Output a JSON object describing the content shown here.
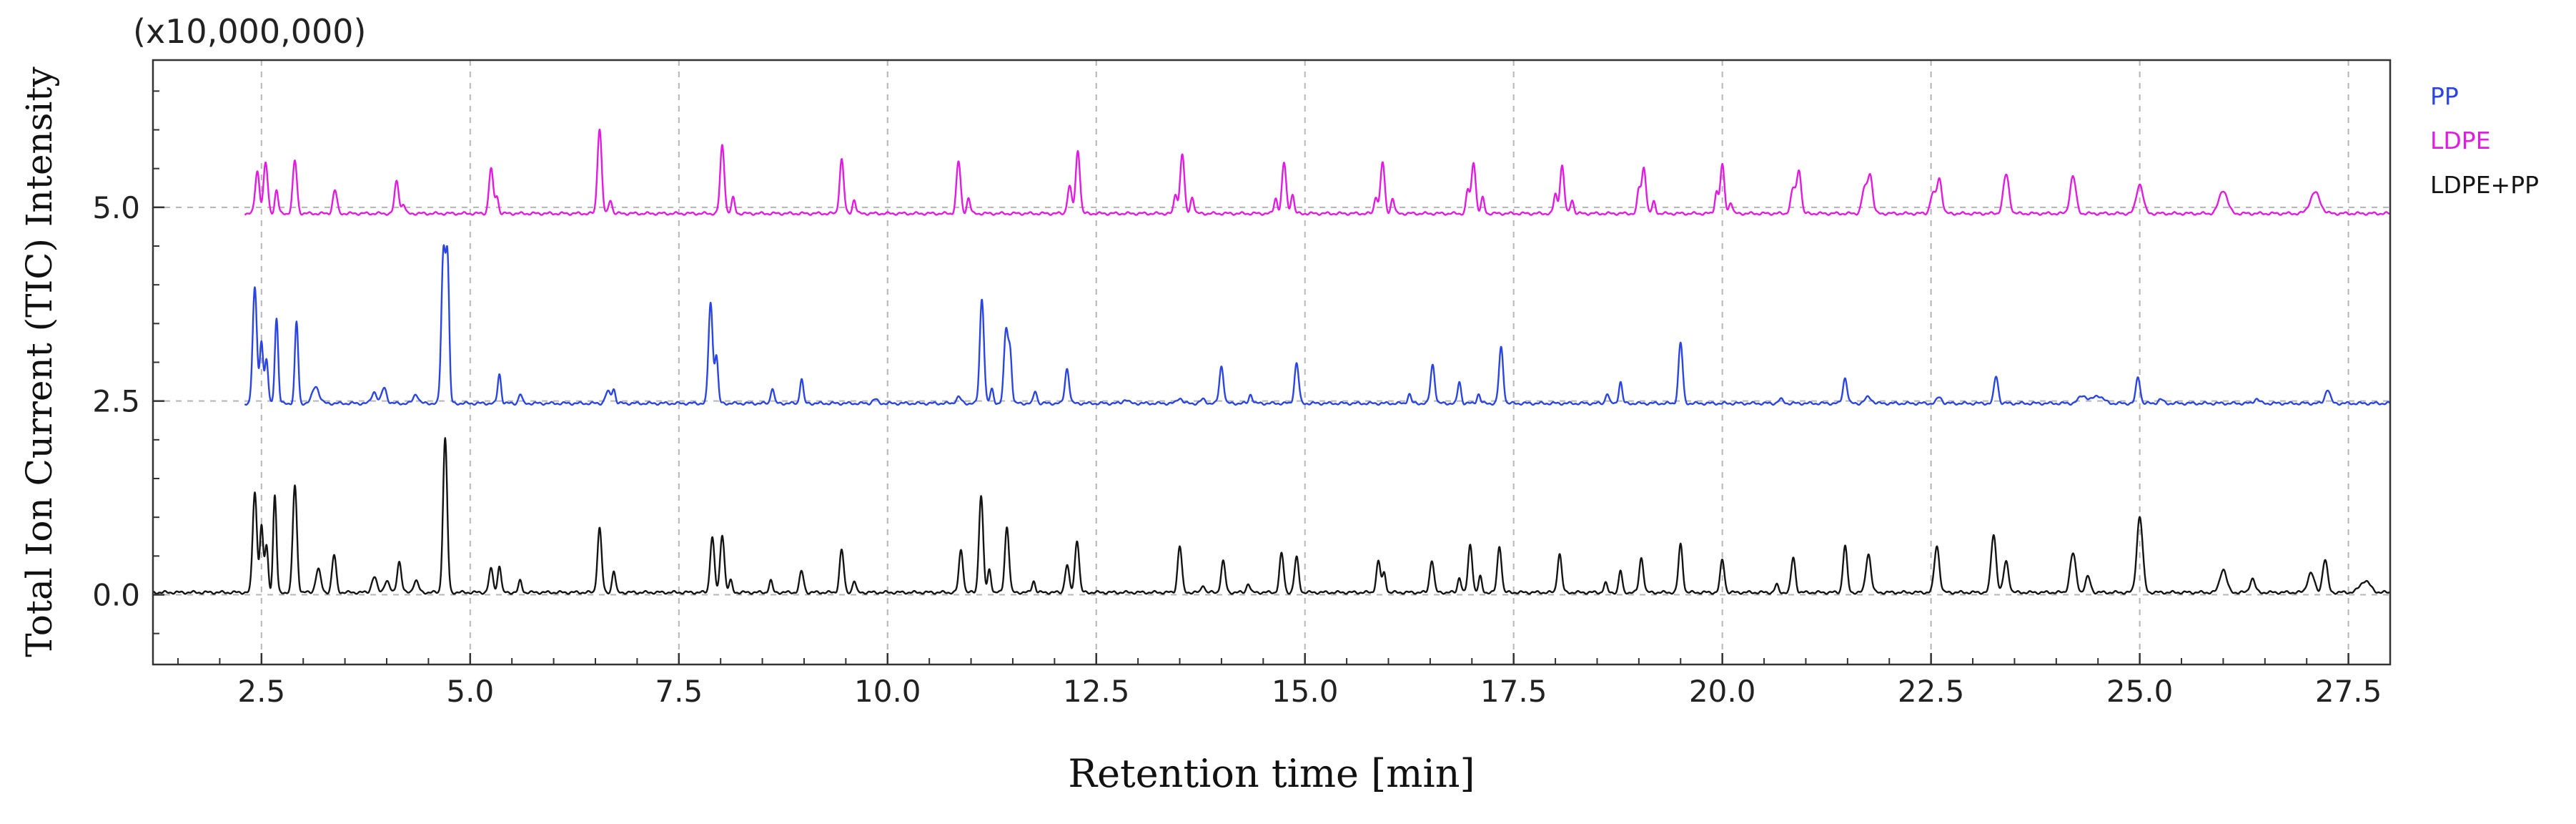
{
  "chart_data": {
    "type": "line",
    "title": "",
    "multiplier_label": "(x10,000,000)",
    "xlabel": "Retention time [min]",
    "ylabel": "Total Ion Current (TIC) Intensity",
    "xlim": [
      1.2,
      28.0
    ],
    "ylim": [
      -0.9,
      6.9
    ],
    "x_ticks": [
      2.5,
      5.0,
      7.5,
      10.0,
      12.5,
      15.0,
      17.5,
      20.0,
      22.5,
      25.0,
      27.5
    ],
    "x_tick_labels": [
      "2.5",
      "5.0",
      "7.5",
      "10.0",
      "12.5",
      "15.0",
      "17.5",
      "20.0",
      "22.5",
      "25.0",
      "27.5"
    ],
    "y_ticks": [
      0.0,
      2.5,
      5.0
    ],
    "y_tick_labels": [
      "0.0",
      "2.5",
      "5.0"
    ],
    "grid": "dashed",
    "legend_position": "right",
    "series": [
      {
        "name": "PP",
        "color": "#2a45e0",
        "baseline": 2.47,
        "peaks": [
          [
            2.42,
            1.48,
            0.025
          ],
          [
            2.5,
            0.8,
            0.02
          ],
          [
            2.56,
            0.55,
            0.02
          ],
          [
            2.68,
            1.1,
            0.02
          ],
          [
            2.92,
            1.05,
            0.02
          ],
          [
            3.15,
            0.22,
            0.04
          ],
          [
            3.85,
            0.15,
            0.03
          ],
          [
            3.97,
            0.2,
            0.03
          ],
          [
            4.35,
            0.12,
            0.03
          ],
          [
            4.68,
            1.95,
            0.025
          ],
          [
            4.73,
            1.7,
            0.02
          ],
          [
            5.35,
            0.38,
            0.02
          ],
          [
            5.6,
            0.12,
            0.02
          ],
          [
            6.65,
            0.15,
            0.03
          ],
          [
            6.72,
            0.18,
            0.02
          ],
          [
            7.88,
            1.3,
            0.025
          ],
          [
            7.95,
            0.6,
            0.02
          ],
          [
            8.62,
            0.2,
            0.02
          ],
          [
            8.97,
            0.32,
            0.02
          ],
          [
            9.85,
            0.05,
            0.03
          ],
          [
            10.85,
            0.08,
            0.03
          ],
          [
            11.13,
            1.35,
            0.025
          ],
          [
            11.25,
            0.18,
            0.02
          ],
          [
            11.42,
            0.95,
            0.025
          ],
          [
            11.47,
            0.6,
            0.02
          ],
          [
            11.77,
            0.16,
            0.02
          ],
          [
            12.15,
            0.45,
            0.025
          ],
          [
            12.85,
            0.05,
            0.03
          ],
          [
            13.5,
            0.07,
            0.03
          ],
          [
            13.78,
            0.05,
            0.03
          ],
          [
            14.0,
            0.48,
            0.025
          ],
          [
            14.35,
            0.12,
            0.02
          ],
          [
            14.9,
            0.52,
            0.025
          ],
          [
            16.25,
            0.12,
            0.02
          ],
          [
            16.53,
            0.5,
            0.025
          ],
          [
            16.85,
            0.28,
            0.02
          ],
          [
            17.08,
            0.12,
            0.02
          ],
          [
            17.35,
            0.72,
            0.025
          ],
          [
            18.62,
            0.13,
            0.02
          ],
          [
            18.78,
            0.28,
            0.02
          ],
          [
            19.5,
            0.78,
            0.025
          ],
          [
            20.7,
            0.05,
            0.03
          ],
          [
            21.47,
            0.33,
            0.025
          ],
          [
            21.75,
            0.08,
            0.04
          ],
          [
            22.6,
            0.08,
            0.03
          ],
          [
            23.28,
            0.35,
            0.025
          ],
          [
            24.32,
            0.1,
            0.05
          ],
          [
            24.5,
            0.1,
            0.06
          ],
          [
            24.98,
            0.34,
            0.025
          ],
          [
            25.25,
            0.05,
            0.03
          ],
          [
            26.4,
            0.06,
            0.03
          ],
          [
            27.25,
            0.18,
            0.03
          ]
        ]
      },
      {
        "name": "LDPE",
        "color": "#e11be0",
        "baseline": 4.92,
        "peaks": [
          [
            2.45,
            0.55,
            0.025
          ],
          [
            2.55,
            0.65,
            0.025
          ],
          [
            2.68,
            0.3,
            0.02
          ],
          [
            2.9,
            0.68,
            0.025
          ],
          [
            3.38,
            0.3,
            0.025
          ],
          [
            4.12,
            0.42,
            0.025
          ],
          [
            4.2,
            0.12,
            0.02
          ],
          [
            5.25,
            0.58,
            0.025
          ],
          [
            5.32,
            0.22,
            0.02
          ],
          [
            6.55,
            1.1,
            0.025
          ],
          [
            6.68,
            0.18,
            0.02
          ],
          [
            8.02,
            0.88,
            0.025
          ],
          [
            8.15,
            0.2,
            0.02
          ],
          [
            9.45,
            0.7,
            0.025
          ],
          [
            9.6,
            0.18,
            0.02
          ],
          [
            10.85,
            0.67,
            0.025
          ],
          [
            10.97,
            0.2,
            0.02
          ],
          [
            12.18,
            0.35,
            0.025
          ],
          [
            12.28,
            0.82,
            0.025
          ],
          [
            13.45,
            0.25,
            0.02
          ],
          [
            13.53,
            0.77,
            0.025
          ],
          [
            13.65,
            0.22,
            0.02
          ],
          [
            14.65,
            0.2,
            0.02
          ],
          [
            14.75,
            0.65,
            0.025
          ],
          [
            14.85,
            0.25,
            0.02
          ],
          [
            15.85,
            0.22,
            0.02
          ],
          [
            15.93,
            0.66,
            0.025
          ],
          [
            16.05,
            0.2,
            0.02
          ],
          [
            16.95,
            0.3,
            0.02
          ],
          [
            17.02,
            0.67,
            0.025
          ],
          [
            17.13,
            0.2,
            0.02
          ],
          [
            18.0,
            0.25,
            0.02
          ],
          [
            18.08,
            0.62,
            0.025
          ],
          [
            18.2,
            0.18,
            0.02
          ],
          [
            19.0,
            0.3,
            0.02
          ],
          [
            19.06,
            0.6,
            0.025
          ],
          [
            19.18,
            0.15,
            0.02
          ],
          [
            19.93,
            0.28,
            0.02
          ],
          [
            20.0,
            0.62,
            0.025
          ],
          [
            20.1,
            0.15,
            0.02
          ],
          [
            20.85,
            0.32,
            0.03
          ],
          [
            20.92,
            0.55,
            0.025
          ],
          [
            21.7,
            0.3,
            0.03
          ],
          [
            21.77,
            0.5,
            0.03
          ],
          [
            22.52,
            0.25,
            0.03
          ],
          [
            22.6,
            0.45,
            0.03
          ],
          [
            23.4,
            0.5,
            0.035
          ],
          [
            24.2,
            0.48,
            0.035
          ],
          [
            25.0,
            0.38,
            0.04
          ],
          [
            26.0,
            0.3,
            0.05
          ],
          [
            27.1,
            0.27,
            0.06
          ]
        ]
      },
      {
        "name": "LDPE+PP",
        "color": "#141414",
        "baseline": 0.03,
        "peaks": [
          [
            2.42,
            1.3,
            0.025
          ],
          [
            2.5,
            0.85,
            0.02
          ],
          [
            2.56,
            0.6,
            0.02
          ],
          [
            2.66,
            1.25,
            0.02
          ],
          [
            2.9,
            1.38,
            0.025
          ],
          [
            3.18,
            0.3,
            0.03
          ],
          [
            3.37,
            0.48,
            0.025
          ],
          [
            3.85,
            0.2,
            0.03
          ],
          [
            4.0,
            0.15,
            0.03
          ],
          [
            4.15,
            0.4,
            0.025
          ],
          [
            4.35,
            0.15,
            0.03
          ],
          [
            4.7,
            1.98,
            0.025
          ],
          [
            5.25,
            0.3,
            0.025
          ],
          [
            5.35,
            0.35,
            0.02
          ],
          [
            5.6,
            0.15,
            0.02
          ],
          [
            6.55,
            0.83,
            0.025
          ],
          [
            6.72,
            0.28,
            0.02
          ],
          [
            7.9,
            0.72,
            0.025
          ],
          [
            8.02,
            0.75,
            0.025
          ],
          [
            8.12,
            0.15,
            0.02
          ],
          [
            8.6,
            0.15,
            0.02
          ],
          [
            8.97,
            0.27,
            0.025
          ],
          [
            9.45,
            0.55,
            0.025
          ],
          [
            9.6,
            0.15,
            0.02
          ],
          [
            10.88,
            0.55,
            0.025
          ],
          [
            11.12,
            1.25,
            0.025
          ],
          [
            11.22,
            0.3,
            0.02
          ],
          [
            11.43,
            0.85,
            0.025
          ],
          [
            11.75,
            0.15,
            0.02
          ],
          [
            12.15,
            0.35,
            0.025
          ],
          [
            12.27,
            0.68,
            0.025
          ],
          [
            13.5,
            0.6,
            0.025
          ],
          [
            13.78,
            0.1,
            0.02
          ],
          [
            14.02,
            0.4,
            0.025
          ],
          [
            14.32,
            0.12,
            0.02
          ],
          [
            14.72,
            0.5,
            0.025
          ],
          [
            14.9,
            0.45,
            0.025
          ],
          [
            15.88,
            0.4,
            0.025
          ],
          [
            15.95,
            0.25,
            0.02
          ],
          [
            16.52,
            0.42,
            0.025
          ],
          [
            16.85,
            0.2,
            0.02
          ],
          [
            16.98,
            0.62,
            0.025
          ],
          [
            17.1,
            0.2,
            0.02
          ],
          [
            17.33,
            0.6,
            0.025
          ],
          [
            18.05,
            0.5,
            0.025
          ],
          [
            18.6,
            0.12,
            0.02
          ],
          [
            18.78,
            0.28,
            0.02
          ],
          [
            19.03,
            0.45,
            0.025
          ],
          [
            19.5,
            0.62,
            0.025
          ],
          [
            20.0,
            0.42,
            0.025
          ],
          [
            20.65,
            0.1,
            0.02
          ],
          [
            20.85,
            0.45,
            0.025
          ],
          [
            21.47,
            0.6,
            0.025
          ],
          [
            21.75,
            0.5,
            0.03
          ],
          [
            22.57,
            0.6,
            0.03
          ],
          [
            23.25,
            0.75,
            0.03
          ],
          [
            23.4,
            0.4,
            0.03
          ],
          [
            24.2,
            0.5,
            0.035
          ],
          [
            24.38,
            0.2,
            0.03
          ],
          [
            25.0,
            0.98,
            0.035
          ],
          [
            26.0,
            0.3,
            0.04
          ],
          [
            26.35,
            0.18,
            0.03
          ],
          [
            27.05,
            0.25,
            0.04
          ],
          [
            27.22,
            0.42,
            0.03
          ],
          [
            27.7,
            0.15,
            0.06
          ]
        ]
      }
    ]
  }
}
